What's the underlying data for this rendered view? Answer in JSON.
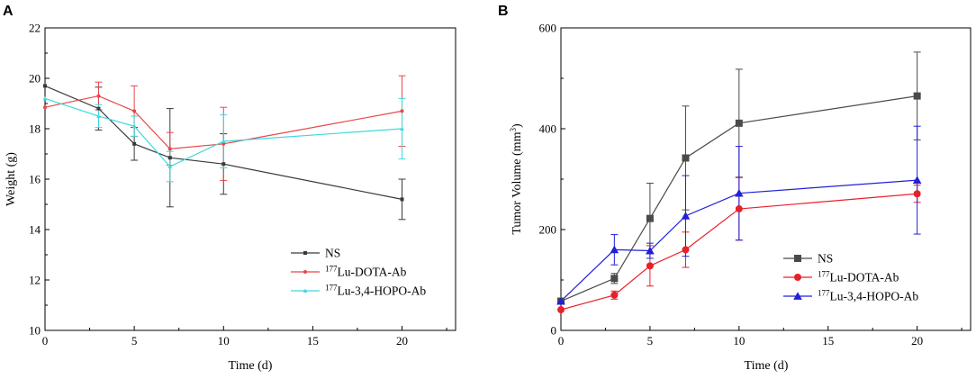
{
  "chart_data": [
    {
      "type": "line",
      "panel_label": "A",
      "title": "",
      "xlabel": "Time (d)",
      "ylabel": "Weight (g)",
      "xlim": [
        0,
        23
      ],
      "ylim": [
        10,
        22
      ],
      "xticks": [
        0,
        5,
        10,
        15,
        20
      ],
      "yticks": [
        10,
        12,
        14,
        16,
        18,
        20,
        22
      ],
      "legend_position": "bottom-right",
      "series": [
        {
          "name": "NS",
          "sup": "",
          "label": "NS",
          "color": "#3a3a3a",
          "marker": "square",
          "x": [
            0,
            3,
            5,
            7,
            10,
            20
          ],
          "y": [
            19.7,
            18.8,
            17.4,
            16.85,
            16.6,
            15.2
          ],
          "err": [
            0,
            0.85,
            0.65,
            1.95,
            1.2,
            0.8
          ]
        },
        {
          "name": "177Lu-DOTA-Ab",
          "sup": "177",
          "label": "Lu-DOTA-Ab",
          "color": "#e8474b",
          "marker": "circle",
          "x": [
            0,
            3,
            5,
            7,
            10,
            20
          ],
          "y": [
            18.85,
            19.3,
            18.7,
            17.2,
            17.4,
            18.7
          ],
          "err": [
            0,
            0.55,
            1.0,
            0.65,
            1.45,
            1.4
          ]
        },
        {
          "name": "177Lu-3,4-HOPO-Ab",
          "sup": "177",
          "label": "Lu-3,4-HOPO-Ab",
          "color": "#3fd8dc",
          "marker": "triangle",
          "x": [
            0,
            3,
            5,
            7,
            10,
            20
          ],
          "y": [
            19.2,
            18.5,
            18.1,
            16.5,
            17.5,
            18.0
          ],
          "err": [
            0,
            0.45,
            0.4,
            0.6,
            1.05,
            1.2
          ]
        }
      ]
    },
    {
      "type": "line",
      "panel_label": "B",
      "title": "",
      "xlabel": "Time (d)",
      "ylabel": "Tumor Volume (mm",
      "ylabel_sup": "3",
      "ylabel_end": ")",
      "xlim": [
        0,
        23
      ],
      "ylim": [
        0,
        600
      ],
      "xticks": [
        0,
        5,
        10,
        15,
        20
      ],
      "yticks": [
        0,
        200,
        400,
        600
      ],
      "legend_position": "bottom-right",
      "series": [
        {
          "name": "NS",
          "sup": "",
          "label": "NS",
          "color": "#4a4a4a",
          "marker": "square",
          "x": [
            0,
            3,
            5,
            7,
            10,
            20
          ],
          "y": [
            58,
            103,
            222,
            342,
            411,
            465
          ],
          "err": [
            0,
            10,
            70,
            103,
            107,
            87
          ]
        },
        {
          "name": "177Lu-DOTA-Ab",
          "sup": "177",
          "label": "Lu-DOTA-Ab",
          "color": "#e8202a",
          "marker": "circle",
          "x": [
            0,
            3,
            5,
            7,
            10,
            20
          ],
          "y": [
            41,
            70,
            128,
            160,
            241,
            271
          ],
          "err": [
            0,
            8,
            40,
            35,
            62,
            17
          ]
        },
        {
          "name": "177Lu-3,4-HOPO-Ab",
          "sup": "177",
          "label": "Lu-3,4-HOPO-Ab",
          "color": "#2020d8",
          "marker": "triangle",
          "x": [
            0,
            3,
            5,
            7,
            10,
            20
          ],
          "y": [
            58,
            160,
            158,
            227,
            272,
            298
          ],
          "err": [
            0,
            30,
            15,
            80,
            93,
            107
          ]
        }
      ]
    }
  ]
}
